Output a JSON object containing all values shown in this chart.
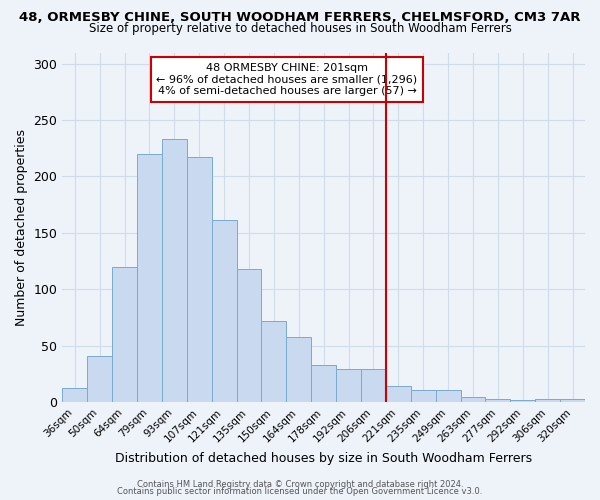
{
  "title_line1": "48, ORMESBY CHINE, SOUTH WOODHAM FERRERS, CHELMSFORD, CM3 7AR",
  "title_line2": "Size of property relative to detached houses in South Woodham Ferrers",
  "xlabel": "Distribution of detached houses by size in South Woodham Ferrers",
  "ylabel": "Number of detached properties",
  "footnote1": "Contains HM Land Registry data © Crown copyright and database right 2024.",
  "footnote2": "Contains public sector information licensed under the Open Government Licence v3.0.",
  "bar_labels": [
    "36sqm",
    "50sqm",
    "64sqm",
    "79sqm",
    "93sqm",
    "107sqm",
    "121sqm",
    "135sqm",
    "150sqm",
    "164sqm",
    "178sqm",
    "192sqm",
    "206sqm",
    "221sqm",
    "235sqm",
    "249sqm",
    "263sqm",
    "277sqm",
    "292sqm",
    "306sqm",
    "320sqm"
  ],
  "bar_heights": [
    12,
    41,
    120,
    220,
    233,
    217,
    161,
    118,
    72,
    58,
    33,
    29,
    29,
    14,
    11,
    11,
    4,
    3,
    2,
    3,
    3
  ],
  "bar_color": "#c8d9f0",
  "bar_edge_color": "#7aaad0",
  "grid_color": "#d0dce8",
  "bg_color": "#eef3fa",
  "vline_color": "#cc0000",
  "vline_pos": 12.5,
  "annotation_title": "48 ORMESBY CHINE: 201sqm",
  "annotation_line1": "← 96% of detached houses are smaller (1,296)",
  "annotation_line2": "4% of semi-detached houses are larger (57) →",
  "annotation_box_color": "#cc0000",
  "ylim": [
    0,
    310
  ],
  "yticks": [
    0,
    50,
    100,
    150,
    200,
    250,
    300
  ]
}
